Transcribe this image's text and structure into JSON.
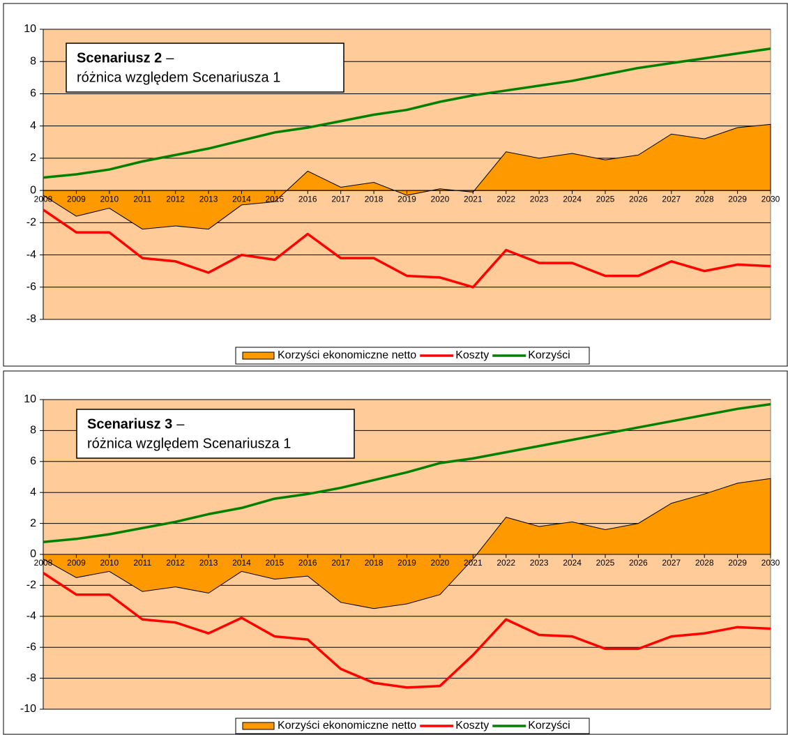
{
  "chart_data": [
    {
      "type": "line",
      "title": "Scenariusz 2",
      "title_suffix": "–",
      "subtitle": "różnica względem Scenariusza 1",
      "categories": [
        "2008",
        "2009",
        "2010",
        "2011",
        "2012",
        "2013",
        "2014",
        "2015",
        "2016",
        "2017",
        "2018",
        "2019",
        "2020",
        "2021",
        "2022",
        "2023",
        "2024",
        "2025",
        "2026",
        "2027",
        "2028",
        "2029",
        "2030"
      ],
      "ylim": [
        -8,
        10
      ],
      "yticks": [
        -8,
        -6,
        -4,
        -2,
        0,
        2,
        4,
        6,
        8,
        10
      ],
      "grid": true,
      "background": "#ffcc99",
      "legend": "bottom",
      "series": [
        {
          "name": "Korzyści ekonomiczne netto",
          "type": "area",
          "color": "#ff9900",
          "values": [
            -0.3,
            -1.6,
            -1.1,
            -2.4,
            -2.2,
            -2.4,
            -0.9,
            -0.7,
            1.2,
            0.2,
            0.5,
            -0.3,
            0.1,
            -0.1,
            2.4,
            2.0,
            2.3,
            1.9,
            2.2,
            3.5,
            3.2,
            3.9,
            4.1
          ]
        },
        {
          "name": "Koszty",
          "type": "line",
          "color": "#ff0000",
          "values": [
            -1.2,
            -2.6,
            -2.6,
            -4.2,
            -4.4,
            -5.1,
            -4.0,
            -4.3,
            -2.7,
            -4.2,
            -4.2,
            -5.3,
            -5.4,
            -6.0,
            -3.7,
            -4.5,
            -4.5,
            -5.3,
            -5.3,
            -4.4,
            -5.0,
            -4.6,
            -4.7
          ]
        },
        {
          "name": "Korzyści",
          "type": "line",
          "color": "#008000",
          "values": [
            0.8,
            1.0,
            1.3,
            1.8,
            2.2,
            2.6,
            3.1,
            3.6,
            3.9,
            4.3,
            4.7,
            5.0,
            5.5,
            5.9,
            6.2,
            6.5,
            6.8,
            7.2,
            7.6,
            7.9,
            8.2,
            8.5,
            8.8
          ]
        }
      ]
    },
    {
      "type": "line",
      "title": "Scenariusz 3",
      "title_suffix": "–",
      "subtitle": "różnica względem Scenariusza 1",
      "categories": [
        "2008",
        "2009",
        "2010",
        "2011",
        "2012",
        "2013",
        "2014",
        "2015",
        "2016",
        "2017",
        "2018",
        "2019",
        "2020",
        "2021",
        "2022",
        "2023",
        "2024",
        "2025",
        "2026",
        "2027",
        "2028",
        "2029",
        "2030"
      ],
      "ylim": [
        -10,
        10
      ],
      "yticks": [
        -10,
        -8,
        -6,
        -4,
        -2,
        0,
        2,
        4,
        6,
        8,
        10
      ],
      "grid": true,
      "background": "#ffcc99",
      "legend": "bottom",
      "series": [
        {
          "name": "Korzyści ekonomiczne netto",
          "type": "area",
          "color": "#ff9900",
          "values": [
            -0.3,
            -1.5,
            -1.1,
            -2.4,
            -2.1,
            -2.5,
            -1.1,
            -1.6,
            -1.4,
            -3.1,
            -3.5,
            -3.2,
            -2.6,
            -0.3,
            2.4,
            1.8,
            2.1,
            1.6,
            2.0,
            3.3,
            3.9,
            4.6,
            4.9
          ]
        },
        {
          "name": "Koszty",
          "type": "line",
          "color": "#ff0000",
          "values": [
            -1.2,
            -2.6,
            -2.6,
            -4.2,
            -4.4,
            -5.1,
            -4.1,
            -5.3,
            -5.5,
            -7.4,
            -8.3,
            -8.6,
            -8.5,
            -6.5,
            -4.2,
            -5.2,
            -5.3,
            -6.1,
            -6.1,
            -5.3,
            -5.1,
            -4.7,
            -4.8
          ]
        },
        {
          "name": "Korzyści",
          "type": "line",
          "color": "#008000",
          "values": [
            0.8,
            1.0,
            1.3,
            1.7,
            2.1,
            2.6,
            3.0,
            3.6,
            3.9,
            4.3,
            4.8,
            5.3,
            5.9,
            6.2,
            6.6,
            7.0,
            7.4,
            7.8,
            8.2,
            8.6,
            9.0,
            9.4,
            9.7
          ]
        }
      ]
    }
  ]
}
